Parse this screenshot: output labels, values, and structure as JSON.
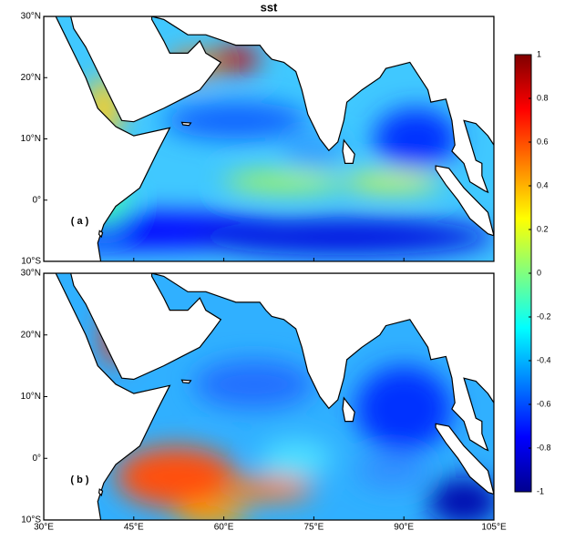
{
  "title": "sst",
  "panels": [
    {
      "label": "( a )"
    },
    {
      "label": "( b )"
    }
  ],
  "map": {
    "lonlim": [
      30,
      105
    ],
    "latlim": [
      -10,
      30
    ],
    "lonticks": [
      {
        "value": 30,
        "label": "30°E"
      },
      {
        "value": 45,
        "label": "45°E"
      },
      {
        "value": 60,
        "label": "60°E"
      },
      {
        "value": 75,
        "label": "75°E"
      },
      {
        "value": 90,
        "label": "90°E"
      },
      {
        "value": 105,
        "label": "105°E"
      }
    ],
    "latticks": [
      {
        "value": -10,
        "label": "10°S"
      },
      {
        "value": 0,
        "label": "0°"
      },
      {
        "value": 10,
        "label": "10°N"
      },
      {
        "value": 20,
        "label": "20°N"
      },
      {
        "value": 30,
        "label": "30°N"
      }
    ]
  },
  "colorbar": {
    "colormap": "jet",
    "lim": [
      -1,
      1
    ],
    "ticks": [
      -1,
      -0.8,
      -0.6,
      -0.4,
      -0.2,
      0,
      0.2,
      0.4,
      0.6,
      0.8,
      1
    ]
  }
}
